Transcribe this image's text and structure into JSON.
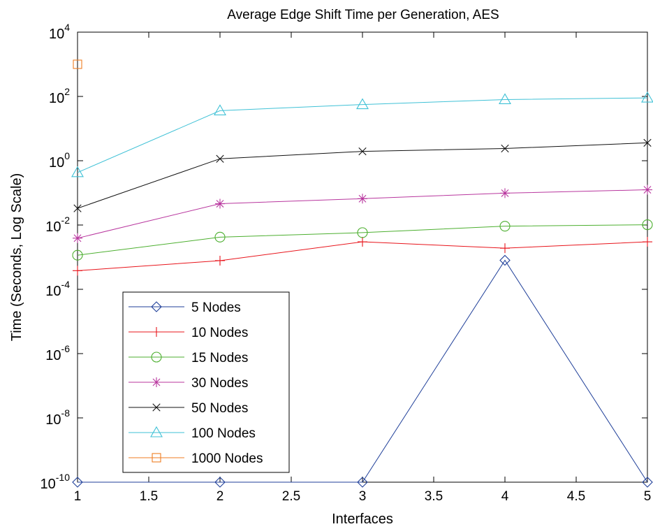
{
  "chart_data": {
    "type": "line",
    "title": "Average Edge Shift Time per Generation, AES",
    "xlabel": "Interfaces",
    "ylabel": "Time (Seconds, Log Scale)",
    "xlim": [
      1,
      5
    ],
    "ylim": [
      1e-10,
      10000.0
    ],
    "yscale": "log",
    "x_ticks": [
      "1",
      "1.5",
      "2",
      "2.5",
      "3",
      "3.5",
      "4",
      "4.5",
      "5"
    ],
    "y_ticks": [
      {
        "base": "10",
        "exp": "4",
        "value": 10000.0
      },
      {
        "base": "10",
        "exp": "2",
        "value": 100.0
      },
      {
        "base": "10",
        "exp": "0",
        "value": 1
      },
      {
        "base": "10",
        "exp": "-2",
        "value": 0.01
      },
      {
        "base": "10",
        "exp": "-4",
        "value": 0.0001
      },
      {
        "base": "10",
        "exp": "-6",
        "value": 1e-06
      },
      {
        "base": "10",
        "exp": "-8",
        "value": 1e-08
      },
      {
        "base": "10",
        "exp": "-10",
        "value": 1e-10
      }
    ],
    "grid": false,
    "legend_position": "bottom-left",
    "series": [
      {
        "name": "5 Nodes",
        "color": "#1f3f99",
        "marker": "diamond",
        "x": [
          1,
          2,
          3,
          4,
          5
        ],
        "values": [
          1e-10,
          1e-10,
          1e-10,
          0.0008,
          1e-10
        ]
      },
      {
        "name": "10 Nodes",
        "color": "#e8141b",
        "marker": "plus",
        "x": [
          1,
          2,
          3,
          4,
          5
        ],
        "values": [
          0.00038,
          0.00078,
          0.003,
          0.0019,
          0.003
        ]
      },
      {
        "name": "15 Nodes",
        "color": "#4caf2f",
        "marker": "circle",
        "x": [
          1,
          2,
          3,
          4,
          5
        ],
        "values": [
          0.00115,
          0.0042,
          0.0058,
          0.0092,
          0.0102
        ]
      },
      {
        "name": "30 Nodes",
        "color": "#b8369e",
        "marker": "star",
        "x": [
          1,
          2,
          3,
          4,
          5
        ],
        "values": [
          0.0039,
          0.046,
          0.066,
          0.098,
          0.125
        ]
      },
      {
        "name": "50 Nodes",
        "color": "#111111",
        "marker": "x",
        "x": [
          1,
          2,
          3,
          4,
          5
        ],
        "values": [
          0.033,
          1.15,
          1.95,
          2.4,
          3.6
        ]
      },
      {
        "name": "100 Nodes",
        "color": "#3fc1d6",
        "marker": "triangle",
        "x": [
          1,
          2,
          3,
          4,
          5
        ],
        "values": [
          0.43,
          36,
          56,
          80,
          90
        ]
      },
      {
        "name": "1000 Nodes",
        "color": "#ef7d22",
        "marker": "square",
        "x": [
          1
        ],
        "values": [
          1000
        ]
      }
    ]
  }
}
